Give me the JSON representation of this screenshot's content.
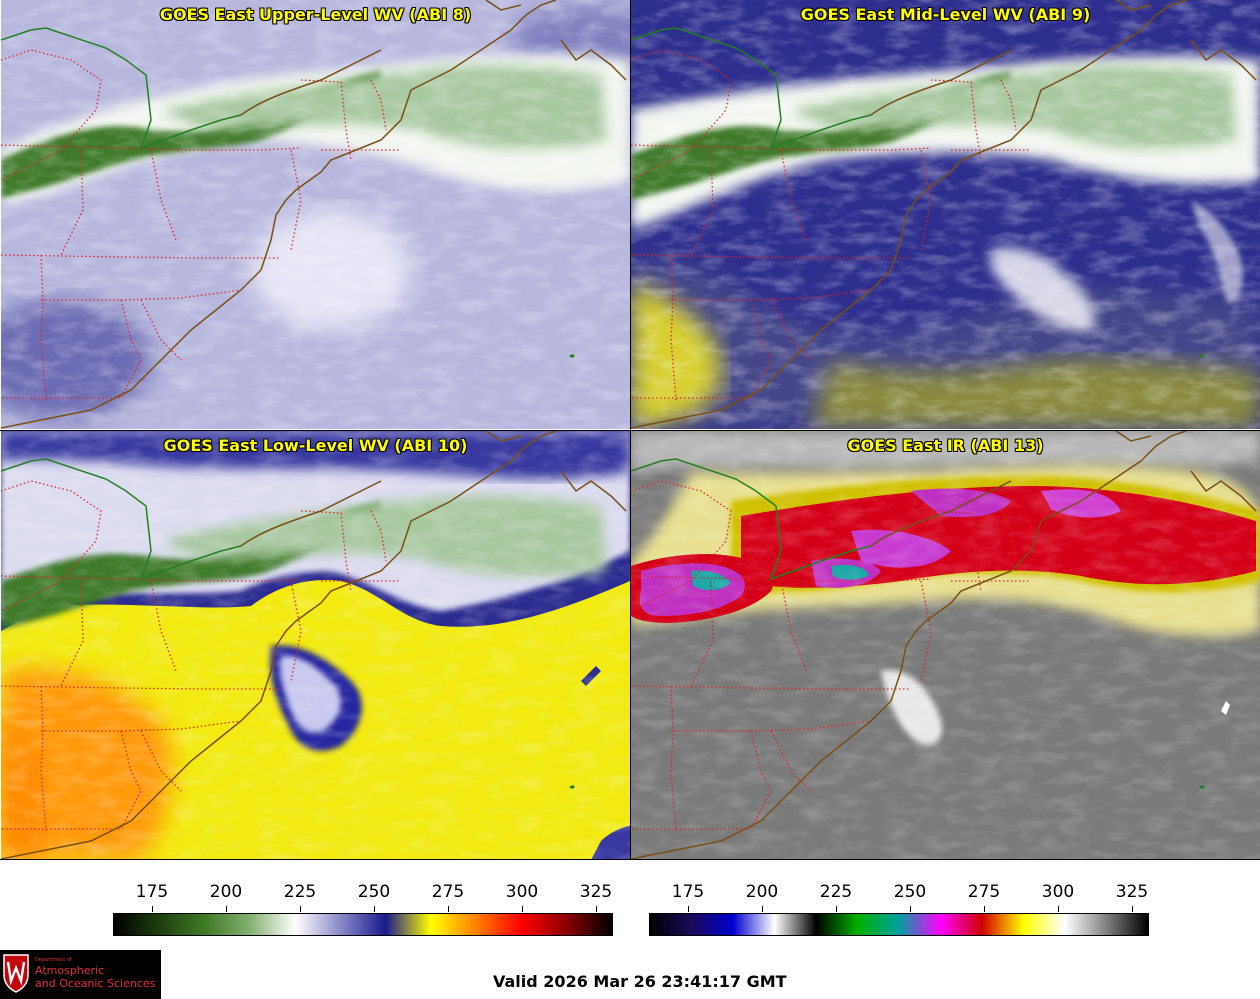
{
  "panels": {
    "upper_wv": {
      "title": "GOES East Upper-Level WV (ABI 8)"
    },
    "mid_wv": {
      "title": "GOES East Mid-Level WV (ABI 9)"
    },
    "low_wv": {
      "title": "GOES East Low-Level WV (ABI 10)"
    },
    "ir": {
      "title": "GOES East IR (ABI 13)"
    }
  },
  "colorbars": {
    "wv": {
      "ticks": [
        "175",
        "200",
        "225",
        "250",
        "275",
        "300",
        "325"
      ],
      "range": [
        162,
        330
      ],
      "stops": [
        "#000000",
        "#1e3f10",
        "#3f7a26",
        "#84b071",
        "#ffffff",
        "#8a8ac8",
        "#1a1a8c",
        "#ffff00",
        "#ff7f00",
        "#ff0000",
        "#8b0000",
        "#000000"
      ]
    },
    "ir": {
      "ticks": [
        "175",
        "200",
        "225",
        "250",
        "275",
        "300",
        "325"
      ],
      "range": [
        162,
        330
      ],
      "stops": [
        "#000000",
        "#1a0a5a",
        "#0000d0",
        "#ffffff",
        "#000000",
        "#00b000",
        "#00a0a0",
        "#ff00ff",
        "#d00000",
        "#ffff00",
        "#ffffff",
        "#808080",
        "#000000"
      ]
    }
  },
  "footer": {
    "valid_time": "Valid 2026 Mar 26 23:41:17 GMT",
    "logo": {
      "line1": "Department of",
      "line2": "Atmospheric",
      "line3": "and Oceanic Sciences"
    }
  },
  "colors": {
    "title_text": "#ffff00",
    "state_borders": "#e02020",
    "coastlines": "#7a4e14",
    "intl_border": "#208020"
  }
}
